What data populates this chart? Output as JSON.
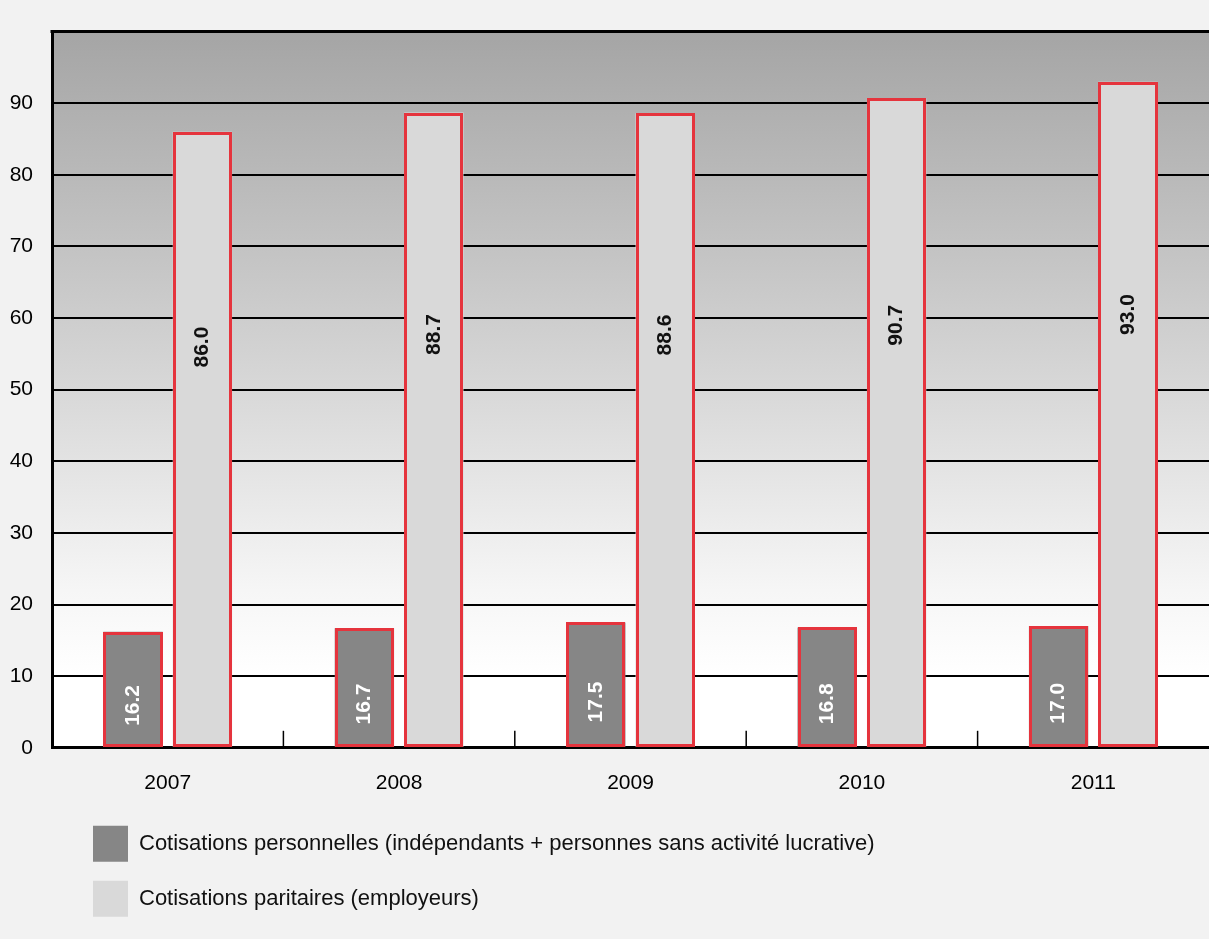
{
  "chart_data": {
    "type": "bar",
    "categories": [
      "2007",
      "2008",
      "2009",
      "2010",
      "2011"
    ],
    "series": [
      {
        "name": "Cotisations personnelles (indépendants + personnes sans activité lucrative)",
        "color": "#868686",
        "values": [
          16.2,
          16.7,
          17.5,
          16.8,
          17.0
        ],
        "value_labels": [
          "16.2",
          "16.7",
          "17.5",
          "16.8",
          "17.0"
        ]
      },
      {
        "name": "Cotisations paritaires (employeurs)",
        "color": "#d9d9d9",
        "values": [
          86.0,
          88.7,
          88.6,
          90.7,
          93.0
        ],
        "value_labels": [
          "86.0",
          "88.7",
          "88.6",
          "90.7",
          "93.0"
        ]
      }
    ],
    "ylim": [
      0,
      100
    ],
    "yticks": [
      0,
      10,
      20,
      30,
      40,
      50,
      60,
      70,
      80,
      90
    ],
    "grid": "y",
    "legend": "bottom left"
  }
}
